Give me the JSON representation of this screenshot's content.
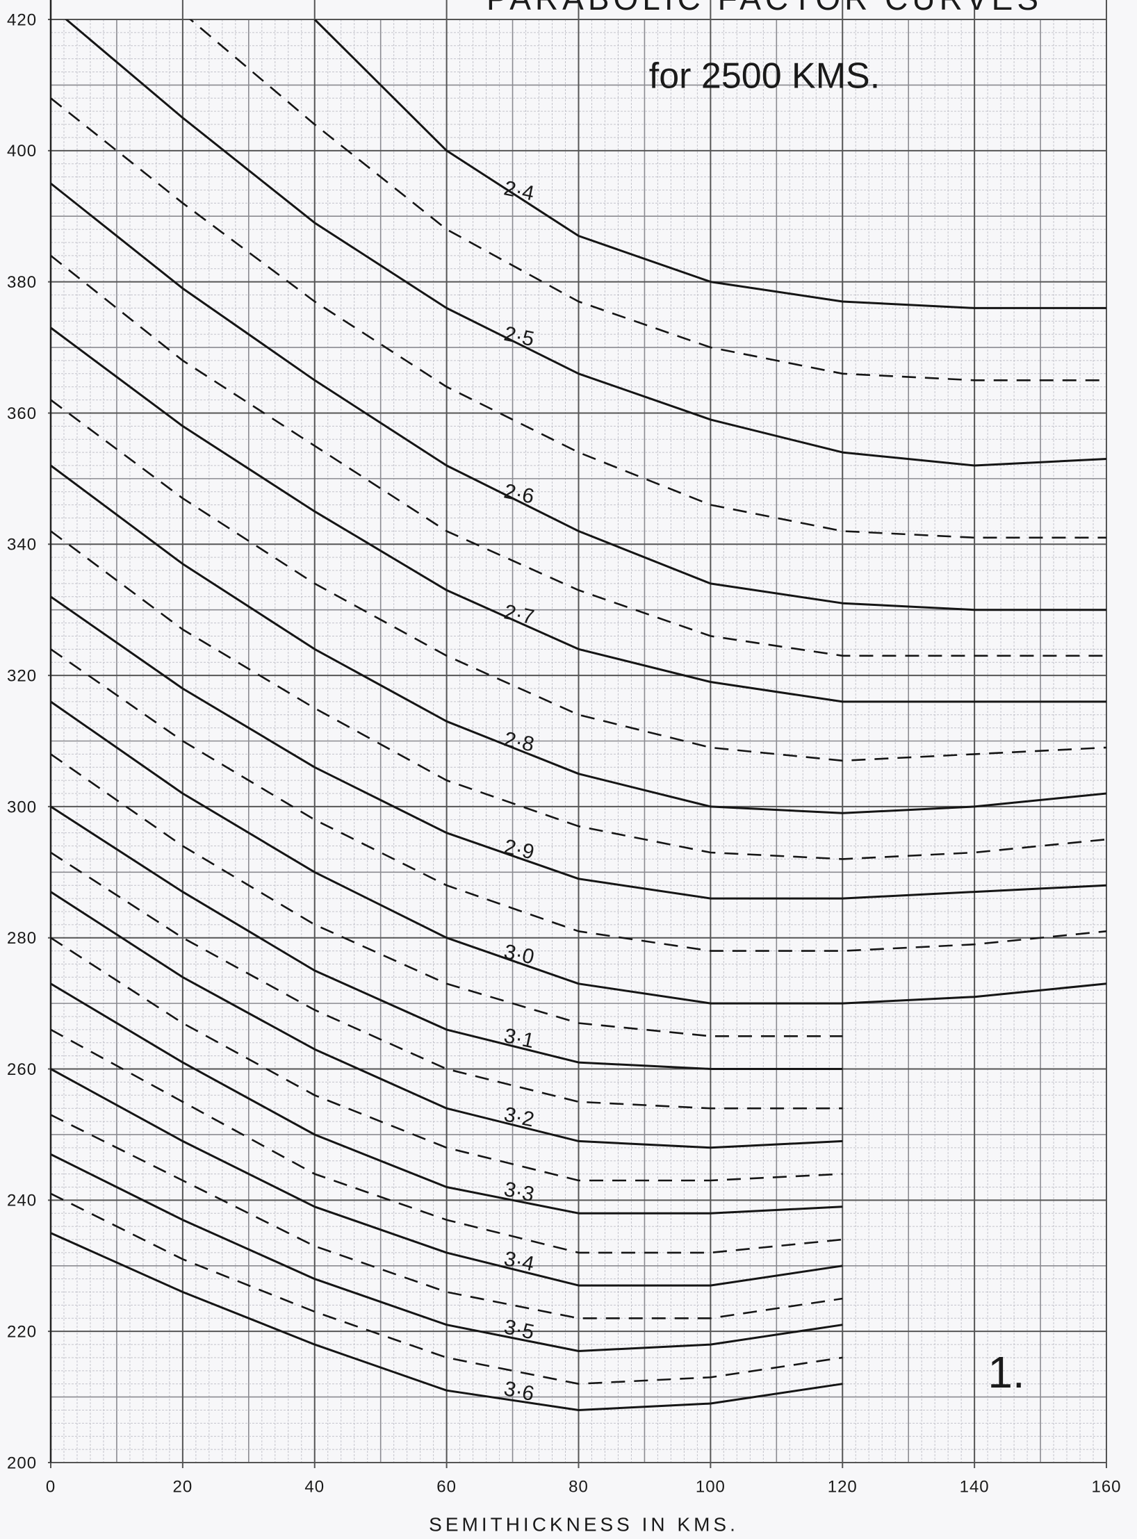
{
  "chart_data": {
    "type": "line",
    "title": "PARABOLIC FACTOR CURVES",
    "subtitle": "for 2500 KMS.",
    "xlabel": "SEMITHICKNESS IN KMS.",
    "annotation": "1.",
    "x": [
      0,
      20,
      40,
      60,
      80,
      100,
      120,
      140,
      160
    ],
    "xlim": [
      0,
      160
    ],
    "xticks": [
      0,
      20,
      40,
      60,
      80,
      100,
      120,
      140,
      160
    ],
    "ylim": [
      200,
      420
    ],
    "yticks": [
      200,
      220,
      240,
      260,
      280,
      300,
      320,
      340,
      360,
      380,
      400,
      420
    ],
    "grid": true,
    "series": [
      {
        "name": "2·4",
        "color": "#151515",
        "values": [
          null,
          null,
          420,
          400,
          387,
          380,
          377,
          376,
          376
        ]
      },
      {
        "color": "#151515",
        "dashed": true,
        "values": [
          null,
          421,
          404,
          388,
          377,
          370,
          366,
          365,
          365
        ]
      },
      {
        "name": "2·5",
        "color": "#151515",
        "values": [
          422,
          405,
          389,
          376,
          366,
          359,
          354,
          352,
          353
        ]
      },
      {
        "color": "#151515",
        "dashed": true,
        "values": [
          408,
          392,
          377,
          364,
          354,
          346,
          342,
          341,
          341
        ]
      },
      {
        "name": "2·6",
        "color": "#151515",
        "values": [
          395,
          379,
          365,
          352,
          342,
          334,
          331,
          330,
          330
        ]
      },
      {
        "color": "#151515",
        "dashed": true,
        "values": [
          384,
          368,
          355,
          342,
          333,
          326,
          323,
          323,
          323
        ]
      },
      {
        "name": "2·7",
        "color": "#151515",
        "values": [
          373,
          358,
          345,
          333,
          324,
          319,
          316,
          316,
          316
        ]
      },
      {
        "color": "#151515",
        "dashed": true,
        "values": [
          362,
          347,
          334,
          323,
          314,
          309,
          307,
          308,
          309
        ]
      },
      {
        "name": "2·8",
        "color": "#151515",
        "values": [
          352,
          337,
          324,
          313,
          305,
          300,
          299,
          300,
          302
        ]
      },
      {
        "color": "#151515",
        "dashed": true,
        "values": [
          342,
          327,
          315,
          304,
          297,
          293,
          292,
          293,
          295
        ]
      },
      {
        "name": "2·9",
        "color": "#151515",
        "values": [
          332,
          318,
          306,
          296,
          289,
          286,
          286,
          287,
          288
        ]
      },
      {
        "color": "#151515",
        "dashed": true,
        "values": [
          324,
          310,
          298,
          288,
          281,
          278,
          278,
          279,
          281
        ]
      },
      {
        "name": "3·0",
        "color": "#151515",
        "values": [
          316,
          302,
          290,
          280,
          273,
          270,
          270,
          271,
          273
        ]
      },
      {
        "color": "#151515",
        "dashed": true,
        "values": [
          308,
          294,
          282,
          273,
          267,
          265,
          265,
          null,
          null
        ]
      },
      {
        "name": "3·1",
        "color": "#151515",
        "values": [
          300,
          287,
          275,
          266,
          261,
          260,
          260,
          null,
          null
        ]
      },
      {
        "color": "#151515",
        "dashed": true,
        "values": [
          293,
          280,
          269,
          260,
          255,
          254,
          254,
          null,
          null
        ]
      },
      {
        "name": "3·2",
        "color": "#151515",
        "values": [
          287,
          274,
          263,
          254,
          249,
          248,
          249,
          null,
          null
        ]
      },
      {
        "color": "#151515",
        "dashed": true,
        "values": [
          280,
          267,
          256,
          248,
          243,
          243,
          244,
          null,
          null
        ]
      },
      {
        "name": "3·3",
        "color": "#151515",
        "values": [
          273,
          261,
          250,
          242,
          238,
          238,
          239,
          null,
          null
        ]
      },
      {
        "color": "#151515",
        "dashed": true,
        "values": [
          266,
          255,
          244,
          237,
          232,
          232,
          234,
          null,
          null
        ]
      },
      {
        "name": "3·4",
        "color": "#151515",
        "values": [
          260,
          249,
          239,
          232,
          227,
          227,
          230,
          null,
          null
        ]
      },
      {
        "color": "#151515",
        "dashed": true,
        "values": [
          253,
          243,
          233,
          226,
          222,
          222,
          225,
          null,
          null
        ]
      },
      {
        "name": "3·5",
        "color": "#151515",
        "values": [
          247,
          237,
          228,
          221,
          217,
          218,
          221,
          null,
          null
        ]
      },
      {
        "color": "#151515",
        "dashed": true,
        "values": [
          241,
          231,
          223,
          216,
          212,
          213,
          216,
          null,
          null
        ]
      },
      {
        "name": "3·6",
        "color": "#151515",
        "values": [
          235,
          226,
          218,
          211,
          208,
          209,
          212,
          null,
          null
        ]
      }
    ]
  }
}
